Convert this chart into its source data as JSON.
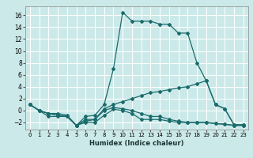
{
  "xlabel": "Humidex (Indice chaleur)",
  "background_color": "#cce9e9",
  "grid_color": "#ffffff",
  "line_color": "#1a6b6b",
  "xlim": [
    -0.5,
    23.5
  ],
  "ylim": [
    -3.2,
    17.5
  ],
  "xticks": [
    0,
    1,
    2,
    3,
    4,
    5,
    6,
    7,
    8,
    9,
    10,
    11,
    12,
    13,
    14,
    15,
    16,
    17,
    18,
    19,
    20,
    21,
    22,
    23
  ],
  "yticks": [
    -2,
    0,
    2,
    4,
    6,
    8,
    10,
    12,
    14,
    16
  ],
  "curves": [
    {
      "x": [
        0,
        1,
        2,
        3,
        4,
        5,
        6,
        7,
        8,
        9,
        10,
        11,
        12,
        13,
        14,
        15,
        16,
        17,
        18,
        19,
        20,
        21,
        22,
        23
      ],
      "y": [
        1,
        0,
        -1,
        -1,
        -1,
        -2.5,
        -1,
        -0.8,
        1,
        7,
        16.5,
        15,
        15,
        15,
        14.5,
        14.5,
        13,
        13,
        8,
        5,
        1,
        0.3,
        -2.4,
        -2.4
      ]
    },
    {
      "x": [
        0,
        1,
        2,
        3,
        4,
        5,
        6,
        7,
        8,
        9,
        10,
        11,
        12,
        13,
        14,
        15,
        16,
        17,
        18,
        19,
        20,
        21,
        22,
        23
      ],
      "y": [
        1,
        0,
        -0.5,
        -0.5,
        -0.8,
        -2.5,
        -1.5,
        -1.5,
        0.3,
        1,
        1.5,
        2,
        2.5,
        3,
        3.2,
        3.5,
        3.8,
        4,
        4.5,
        5,
        1,
        0.3,
        -2.4,
        -2.4
      ]
    },
    {
      "x": [
        0,
        1,
        2,
        3,
        4,
        5,
        6,
        7,
        8,
        9,
        10,
        11,
        12,
        13,
        14,
        15,
        16,
        17,
        18,
        19,
        20,
        21,
        22,
        23
      ],
      "y": [
        1,
        0,
        -0.5,
        -0.8,
        -1,
        -2.5,
        -2,
        -2,
        -0.8,
        0.2,
        0,
        -0.5,
        -1.5,
        -1.5,
        -1.5,
        -1.8,
        -2,
        -2,
        -2,
        -2,
        -2.2,
        -2.3,
        -2.5,
        -2.5
      ]
    },
    {
      "x": [
        0,
        1,
        2,
        3,
        4,
        5,
        6,
        7,
        8,
        9,
        10,
        11,
        12,
        13,
        14,
        15,
        16,
        17,
        18,
        19,
        20,
        21,
        22,
        23
      ],
      "y": [
        1,
        0,
        -0.5,
        -0.8,
        -1,
        -2.5,
        -1.8,
        -1.5,
        0,
        0.5,
        0.3,
        0,
        -0.5,
        -1,
        -1,
        -1.5,
        -1.8,
        -2,
        -2,
        -2,
        -2.2,
        -2.3,
        -2.5,
        -2.5
      ]
    }
  ]
}
